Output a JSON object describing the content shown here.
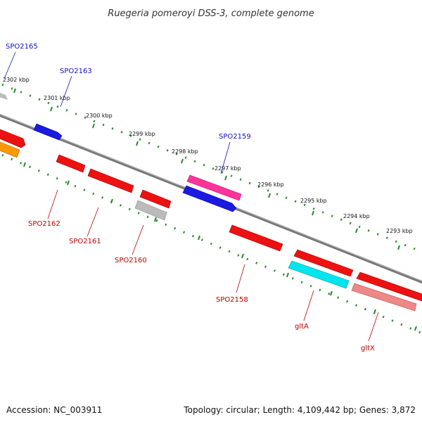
{
  "title": "Ruegeria pomeroyi DSS-3, complete genome",
  "footer": {
    "accession": "Accession: NC_003911",
    "summary": "Topology: circular; Length: 4,109,442 bp; Genes: 3,872"
  },
  "colors": {
    "backbone": "#888888",
    "tick": "#2a8a2a",
    "label_blue": "#1010c0",
    "label_red": "#c00000"
  },
  "ticks": [
    "2302 kbp",
    "2301 kbp",
    "2300 kbp",
    "2299 kbp",
    "2298 kbp",
    "2297 kbp",
    "2296 kbp",
    "2295 kbp",
    "2294 kbp",
    "2293 kbp"
  ],
  "genes": [
    {
      "label": "SPO2165",
      "label_color": "blue",
      "color": "#1a1ae0"
    },
    {
      "label": "SPO2163",
      "label_color": "blue",
      "color": "#1a1ae0"
    },
    {
      "label": "SPO2159",
      "label_color": "blue",
      "color": "#ff3399"
    },
    {
      "label": "SPO2162",
      "label_color": "red",
      "color": "#ee1111"
    },
    {
      "label": "SPO2161",
      "label_color": "red",
      "color": "#ee1111"
    },
    {
      "label": "SPO2160",
      "label_color": "red",
      "color": "#bbbbbb"
    },
    {
      "label": "SPO2158",
      "label_color": "red",
      "color": "#ee1111"
    },
    {
      "label": "gltA",
      "label_color": "red",
      "color": "#00e5ee"
    },
    {
      "label": "gltX",
      "label_color": "red",
      "color": "#ee8888"
    }
  ]
}
